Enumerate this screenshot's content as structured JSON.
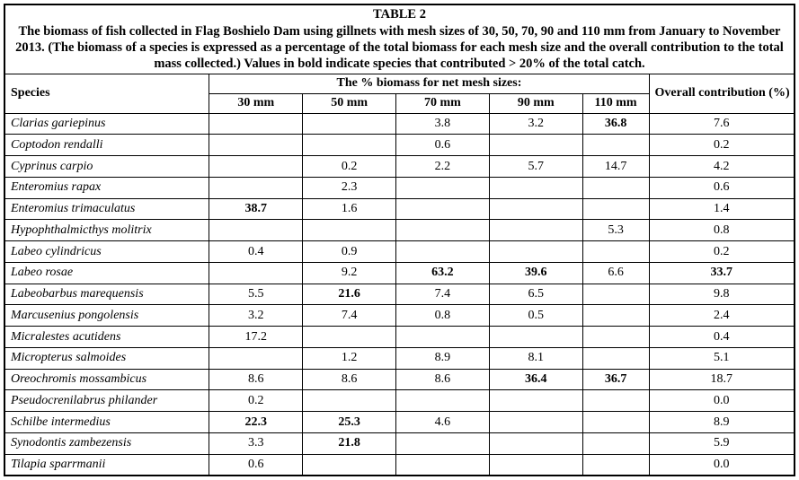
{
  "table": {
    "title": "TABLE 2",
    "caption": "The biomass of fish collected in Flag Boshielo Dam using gillnets with mesh sizes of 30, 50, 70, 90 and 110 mm from January to November 2013. (The biomass of a species is expressed as a percentage of the total biomass for each mesh size and the overall contribution to the total mass collected.) Values in bold indicate species that contributed > 20% of the total catch.",
    "columns": {
      "species": "Species",
      "group_header": "The % biomass for net mesh sizes:",
      "mesh_sizes": [
        "30 mm",
        "50 mm",
        "70 mm",
        "90 mm",
        "110 mm"
      ],
      "overall": "Overall contribution (%)"
    },
    "bold_rule_threshold": 20,
    "rows": [
      {
        "species": "Clarias gariepinus",
        "values": [
          "",
          "",
          "3.8",
          "3.2",
          "36.8"
        ],
        "overall": "7.6"
      },
      {
        "species": "Coptodon rendalli",
        "values": [
          "",
          "",
          "0.6",
          "",
          ""
        ],
        "overall": "0.2"
      },
      {
        "species": "Cyprinus carpio",
        "values": [
          "",
          "0.2",
          "2.2",
          "5.7",
          "14.7"
        ],
        "overall": "4.2"
      },
      {
        "species": "Enteromius rapax",
        "values": [
          "",
          "2.3",
          "",
          "",
          ""
        ],
        "overall": "0.6"
      },
      {
        "species": "Enteromius trimaculatus",
        "values": [
          "38.7",
          "1.6",
          "",
          "",
          ""
        ],
        "overall": "1.4"
      },
      {
        "species": "Hypophthalmicthys molitrix",
        "values": [
          "",
          "",
          "",
          "",
          "5.3"
        ],
        "overall": "0.8"
      },
      {
        "species": "Labeo cylindricus",
        "values": [
          "0.4",
          "0.9",
          "",
          "",
          ""
        ],
        "overall": "0.2"
      },
      {
        "species": "Labeo rosae",
        "values": [
          "",
          "9.2",
          "63.2",
          "39.6",
          "6.6"
        ],
        "overall": "33.7"
      },
      {
        "species": "Labeobarbus marequensis",
        "values": [
          "5.5",
          "21.6",
          "7.4",
          "6.5",
          ""
        ],
        "overall": "9.8"
      },
      {
        "species": "Marcusenius pongolensis",
        "values": [
          "3.2",
          "7.4",
          "0.8",
          "0.5",
          ""
        ],
        "overall": "2.4"
      },
      {
        "species": "Micralestes acutidens",
        "values": [
          "17.2",
          "",
          "",
          "",
          ""
        ],
        "overall": "0.4"
      },
      {
        "species": "Micropterus salmoides",
        "values": [
          "",
          "1.2",
          "8.9",
          "8.1",
          ""
        ],
        "overall": "5.1"
      },
      {
        "species": "Oreochromis mossambicus",
        "values": [
          "8.6",
          "8.6",
          "8.6",
          "36.4",
          "36.7"
        ],
        "overall": "18.7"
      },
      {
        "species": "Pseudocrenilabrus philander",
        "values": [
          "0.2",
          "",
          "",
          "",
          ""
        ],
        "overall": "0.0"
      },
      {
        "species": "Schilbe intermedius",
        "values": [
          "22.3",
          "25.3",
          "4.6",
          "",
          ""
        ],
        "overall": "8.9"
      },
      {
        "species": "Synodontis zambezensis",
        "values": [
          "3.3",
          "21.8",
          "",
          "",
          ""
        ],
        "overall": "5.9"
      },
      {
        "species": "Tilapia sparrmanii",
        "values": [
          "0.6",
          "",
          "",
          "",
          ""
        ],
        "overall": "0.0"
      }
    ]
  }
}
